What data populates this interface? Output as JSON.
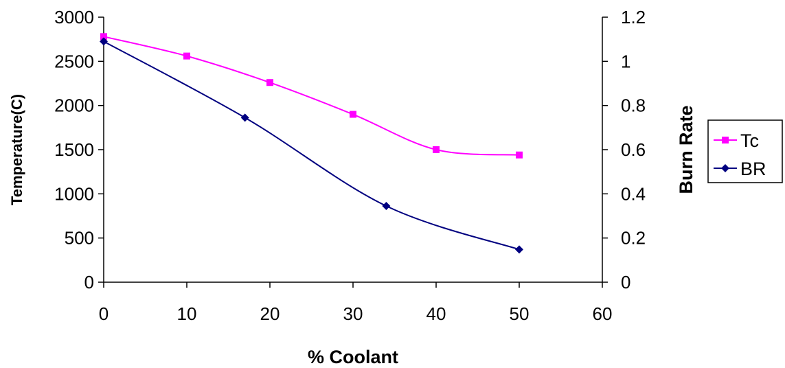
{
  "chart_data": {
    "type": "line",
    "title": "",
    "xlabel": "% Coolant",
    "ylabel_left": "Temperature(C)",
    "ylabel_right": "Burn Rate",
    "xlim": [
      0,
      60
    ],
    "ylim_left": [
      0,
      3000
    ],
    "ylim_right": [
      0,
      1.2
    ],
    "x_ticks": [
      "0",
      "10",
      "20",
      "30",
      "40",
      "50",
      "60"
    ],
    "y_left_ticks": [
      "0",
      "500",
      "1000",
      "1500",
      "2000",
      "2500",
      "3000"
    ],
    "y_right_ticks": [
      "0",
      "0.2",
      "0.4",
      "0.6",
      "0.8",
      "1",
      "1.2"
    ],
    "x_tick_values": [
      0,
      10,
      20,
      30,
      40,
      50,
      60
    ],
    "y_left_tick_values": [
      0,
      500,
      1000,
      1500,
      2000,
      2500,
      3000
    ],
    "y_right_tick_values": [
      0,
      0.2,
      0.4,
      0.6,
      0.8,
      1,
      1.2
    ],
    "grid": false,
    "legend_position": "right",
    "series": [
      {
        "name": "Tc",
        "axis": "left",
        "color": "#ff00ff",
        "marker": "square",
        "x": [
          0,
          10,
          20,
          30,
          40,
          50
        ],
        "y": [
          2780,
          2560,
          2260,
          1900,
          1500,
          1440
        ]
      },
      {
        "name": "BR",
        "axis": "right",
        "color": "#000080",
        "marker": "diamond",
        "x": [
          0,
          17,
          34,
          50
        ],
        "y": [
          1.09,
          0.745,
          0.345,
          0.148
        ]
      }
    ]
  }
}
